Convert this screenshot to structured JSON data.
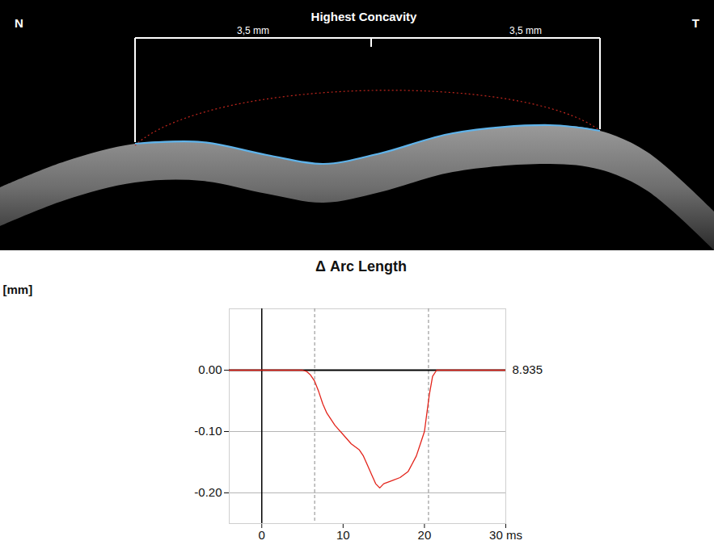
{
  "image": {
    "title": "Highest Concavity",
    "left_label": "N",
    "right_label": "T",
    "segments": [
      "3,5 mm",
      "3,5 mm"
    ]
  },
  "chart_data": {
    "type": "line",
    "title": "Δ Arc Length",
    "y_label": "[mm]",
    "x": [
      -4,
      -2,
      0,
      2,
      4,
      5,
      5.5,
      6,
      6.5,
      7,
      7.5,
      8,
      9,
      10,
      11,
      12,
      12.5,
      13,
      13.5,
      14,
      14.5,
      15,
      16,
      17,
      18,
      19,
      19.5,
      20,
      20.3,
      20.6,
      21,
      21.5,
      23,
      25,
      27,
      29,
      30
    ],
    "values": [
      0,
      0,
      0,
      0,
      0,
      0,
      -0.002,
      -0.008,
      -0.018,
      -0.035,
      -0.055,
      -0.07,
      -0.09,
      -0.105,
      -0.12,
      -0.13,
      -0.14,
      -0.155,
      -0.17,
      -0.185,
      -0.192,
      -0.185,
      -0.18,
      -0.175,
      -0.165,
      -0.14,
      -0.12,
      -0.1,
      -0.07,
      -0.04,
      -0.01,
      0,
      0,
      0,
      0,
      0,
      0
    ],
    "color": "#e3241b",
    "xlim": [
      -4,
      30
    ],
    "xticks": [
      0,
      10,
      20,
      {
        "value": 30,
        "label": "30 ms"
      }
    ],
    "ylim": [
      -0.25,
      0.1
    ],
    "yticks": [
      {
        "value": 0,
        "label": "0.00"
      },
      {
        "value": -0.1,
        "label": "-0.10"
      },
      {
        "value": -0.2,
        "label": "-0.20"
      }
    ],
    "baseline": 0,
    "vlines": [
      6.5,
      20.5
    ],
    "annotations": [
      "8.935"
    ],
    "grid": true
  }
}
